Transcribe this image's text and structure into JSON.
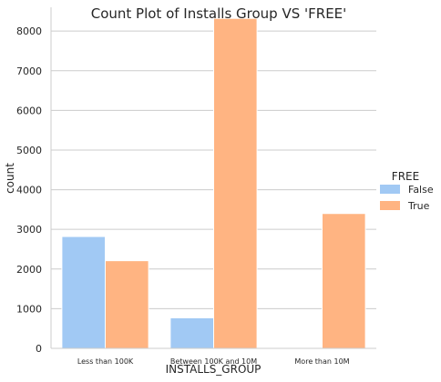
{
  "chart_data": {
    "type": "bar",
    "title": "Count Plot of Installs Group VS 'FREE'",
    "xlabel": "INSTALLS_GROUP",
    "ylabel": "count",
    "categories": [
      "Less than 100K",
      "Between 100K and 10M",
      "More than 10M"
    ],
    "series": [
      {
        "name": "False",
        "color": "#a1c9f4",
        "values": [
          2820,
          770,
          0
        ]
      },
      {
        "name": "True",
        "color": "#ffb482",
        "values": [
          2210,
          8320,
          3400
        ]
      }
    ],
    "ylim": [
      0,
      8600
    ],
    "yticks": [
      "0",
      "1000",
      "2000",
      "3000",
      "4000",
      "5000",
      "6000",
      "7000",
      "8000"
    ],
    "grid": "y",
    "legend": {
      "title": "FREE",
      "placement": "right"
    }
  }
}
